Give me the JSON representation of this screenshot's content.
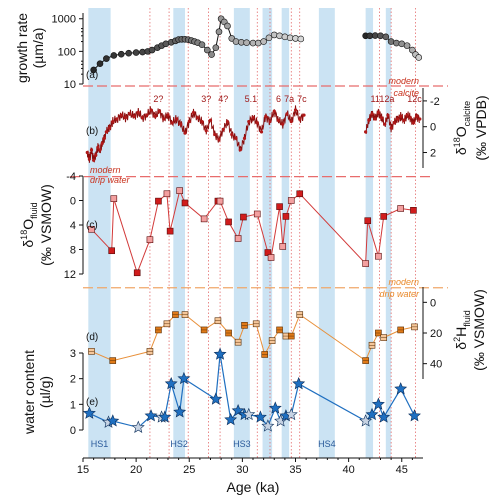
{
  "chart_data": {
    "type": "scatter",
    "xlabel": "Age (ka)",
    "xlim": [
      15,
      47
    ],
    "xticks": [
      15,
      20,
      25,
      30,
      35,
      40,
      45
    ],
    "heinrich_stadials": [
      {
        "label": "HS1",
        "start": 15.5,
        "end": 17.6
      },
      {
        "label": "HS2",
        "start": 23.5,
        "end": 24.6
      },
      {
        "label": "HS3",
        "start": 29.2,
        "end": 30.7
      },
      {
        "label": "HS4",
        "start": 37.2,
        "end": 38.7
      }
    ],
    "extra_bands": [
      {
        "start": 31.9,
        "end": 32.8
      },
      {
        "start": 33.7,
        "end": 34.4
      },
      {
        "start": 41.6,
        "end": 42.3
      },
      {
        "start": 43.5,
        "end": 44.0
      }
    ],
    "interstadial_lines": [
      21.3,
      23.1,
      24.9,
      26.8,
      27.9,
      31.4,
      32.6,
      34.6,
      35.4,
      42.9,
      44.0,
      46.3
    ],
    "interstadial_labels": [
      {
        "label": "2?",
        "x": 22.1
      },
      {
        "label": "3?",
        "x": 26.6
      },
      {
        "label": "4?",
        "x": 28.2
      },
      {
        "label": "5.1",
        "x": 30.8
      },
      {
        "label": "6",
        "x": 33.4
      },
      {
        "label": "7a",
        "x": 34.4
      },
      {
        "label": "7c",
        "x": 35.6
      },
      {
        "label": "11",
        "x": 42.5
      },
      {
        "label": "12a",
        "x": 43.6
      },
      {
        "label": "12c",
        "x": 46.2
      }
    ],
    "panels": {
      "a": {
        "letter": "(a)",
        "ylabel": "growth rate",
        "ylabel_unit": "(µm/a)",
        "scale": "log",
        "ylim": [
          10,
          1500
        ],
        "yticks": [
          10,
          100,
          1000
        ],
        "modern_label": "modern",
        "series": [
          {
            "x": [
              16.0,
              16.6,
              17.2,
              17.9,
              18.6,
              19.3,
              20.0,
              20.6,
              21.1,
              21.5,
              22.0,
              22.4,
              22.8,
              23.3,
              23.7,
              24.0,
              24.3,
              24.6,
              24.9,
              25.2,
              25.5,
              25.8,
              26.2,
              26.7,
              27.1,
              27.5,
              27.8,
              28.0,
              28.3,
              28.6,
              29.0,
              29.4,
              29.9,
              30.4,
              31.0,
              31.5,
              32.0,
              32.5,
              33.0,
              33.5,
              34.0,
              34.5,
              35.0,
              35.5
            ],
            "y": [
              27,
              42,
              60,
              75,
              82,
              88,
              92,
              95,
              100,
              110,
              130,
              150,
              170,
              190,
              210,
              230,
              235,
              235,
              228,
              215,
              200,
              185,
              160,
              110,
              80,
              130,
              400,
              1000,
              800,
              600,
              250,
              200,
              190,
              185,
              180,
              180,
              200,
              260,
              320,
              300,
              280,
              260,
              250,
              240
            ]
          },
          {
            "x": [
              41.6,
              42.0,
              42.5,
              43.0,
              43.5,
              44.0,
              44.5,
              45.0,
              45.5,
              46.0,
              46.3,
              46.6
            ],
            "y": [
              300,
              300,
              305,
              300,
              280,
              200,
              180,
              170,
              150,
              110,
              80,
              65
            ]
          }
        ]
      },
      "b": {
        "letter": "(b)",
        "ylabel": "δ18O calcite",
        "ylabel_unit": "(‰ VPDB)",
        "ylim_top": -3,
        "ylim_bottom": 3.2,
        "yticks": [
          -2,
          0,
          2
        ],
        "modern_label1": "modern",
        "modern_label2": "calcite",
        "modern_value": -3.3,
        "series": [
          {
            "x": [
              15.4,
              15.6,
              15.8,
              16.0,
              16.2,
              16.4,
              16.6,
              16.8,
              17.0,
              17.2,
              17.5,
              17.8,
              18.2,
              18.6,
              19.0,
              19.4,
              19.8,
              20.2,
              20.6,
              21.0,
              21.4,
              21.8,
              22.2,
              22.6,
              23.0,
              23.4,
              23.8,
              24.2,
              24.6,
              25.0,
              25.4,
              25.8,
              26.2,
              26.6,
              27.0,
              27.4,
              27.8,
              28.2,
              28.6,
              29.0,
              29.4,
              29.8,
              30.2,
              30.6,
              31.0,
              31.4,
              31.8,
              32.2,
              32.6,
              33.0,
              33.4,
              33.8,
              34.2,
              34.6,
              35.0,
              35.4,
              35.8
            ],
            "y": [
              2.0,
              2.5,
              1.8,
              2.6,
              2.2,
              1.6,
              1.8,
              1.3,
              0.9,
              0.4,
              0.1,
              -0.4,
              -0.6,
              -0.9,
              -0.7,
              -1.0,
              -0.8,
              -1.1,
              -0.7,
              -0.9,
              -1.3,
              -0.8,
              -1.2,
              -0.6,
              -0.9,
              -0.3,
              -0.6,
              -0.2,
              0.5,
              -0.4,
              -1.1,
              -0.7,
              -0.4,
              0.3,
              -0.5,
              0.6,
              1.0,
              0.2,
              -0.4,
              0.6,
              0.9,
              1.8,
              0.9,
              -0.4,
              -0.7,
              -0.3,
              0.4,
              -0.8,
              -0.4,
              -1.2,
              -0.5,
              -0.2,
              -1.0,
              -0.4,
              -1.3,
              -0.6,
              -0.9
            ]
          },
          {
            "x": [
              41.6,
              41.9,
              42.2,
              42.5,
              42.8,
              43.1,
              43.4,
              43.7,
              44.0,
              44.3,
              44.6,
              44.9,
              45.2,
              45.5,
              45.8,
              46.1,
              46.4,
              46.7
            ],
            "y": [
              0.4,
              -0.5,
              -1.0,
              -0.6,
              -1.1,
              -0.7,
              -0.2,
              -0.9,
              0.1,
              -0.3,
              -0.6,
              -0.8,
              -0.5,
              -0.9,
              -0.7,
              -0.3,
              -0.8,
              -0.6
            ]
          }
        ]
      },
      "c": {
        "letter": "(c)",
        "ylabel": "δ18O fluid",
        "ylabel_unit": "(‰ VSMOW)",
        "ylim_top": -4,
        "ylim_bottom": 12,
        "yticks": [
          -4,
          0,
          4,
          8,
          12
        ],
        "modern_label1": "modern",
        "modern_label2": "drip water",
        "modern_value": -3.9,
        "series": [
          {
            "x": [
              15.8,
              17.7,
              17.9,
              20.1,
              21.3,
              22.1,
              22.9,
              23.2,
              24.1,
              24.6,
              26.4,
              27.7,
              27.9,
              28.7,
              29.6,
              30.1,
              31.4,
              32.4,
              32.7,
              33.5,
              33.8,
              34.1,
              34.6,
              35.4,
              41.6,
              41.8,
              42.8,
              43.3,
              44.9,
              46.1
            ],
            "y": [
              4.7,
              8.2,
              -0.3,
              11.8,
              6.4,
              0.1,
              -1.1,
              5.0,
              -1.6,
              0.4,
              3.0,
              0.1,
              0.1,
              3.5,
              6.2,
              2.7,
              2.2,
              8.5,
              9.3,
              1.0,
              7.5,
              2.6,
              0.0,
              -1.1,
              10.3,
              3.3,
              9.1,
              2.6,
              1.3,
              1.6
            ]
          }
        ]
      },
      "d": {
        "letter": "(d)",
        "ylabel": "δ2H fluid",
        "ylabel_unit": "(‰ VSMOW)",
        "ylim_top": -10,
        "ylim_bottom": 50,
        "yticks": [
          0,
          20,
          40
        ],
        "modern_label1": "modern",
        "modern_label2": "drip water",
        "modern_value": -9.5,
        "series": [
          {
            "x": [
              15.8,
              17.8,
              21.3,
              22.1,
              22.9,
              23.7,
              24.6,
              26.4,
              27.7,
              28.7,
              29.6,
              30.2,
              31.3,
              32.1,
              32.8,
              33.5,
              34.1,
              34.6,
              35.4,
              41.6,
              42.2,
              42.8,
              43.3,
              44.9,
              46.2
            ],
            "y": [
              32,
              38,
              32,
              18,
              14,
              8,
              8,
              18,
              12,
              20,
              26,
              15,
              14,
              34,
              25,
              18,
              22,
              22,
              8,
              38,
              28,
              20,
              23,
              18,
              16
            ]
          }
        ]
      },
      "e": {
        "letter": "(e)",
        "ylabel": "water content",
        "ylabel_unit": "(µl/g)",
        "ylim": [
          0,
          3.4
        ],
        "yticks": [
          0,
          1,
          2,
          3
        ],
        "series": [
          {
            "x": [
              15.6,
              17.4,
              17.8,
              20.2,
              21.4,
              22.4,
              22.7,
              23.3,
              24.1,
              24.5,
              27.5,
              27.9,
              28.9,
              29.6,
              30.2,
              30.6,
              31.7,
              32.4,
              33.1,
              33.6,
              34.1,
              34.6,
              35.3,
              41.6,
              42.2,
              42.8,
              43.3,
              44.9,
              46.2
            ],
            "y": [
              0.65,
              0.3,
              0.35,
              0.1,
              0.55,
              0.5,
              0.5,
              1.8,
              0.7,
              2.0,
              1.2,
              2.95,
              0.4,
              0.75,
              0.6,
              0.6,
              0.5,
              0.15,
              0.85,
              0.35,
              0.55,
              0.6,
              1.8,
              0.35,
              0.6,
              1.0,
              0.5,
              1.6,
              0.55
            ]
          }
        ]
      }
    }
  }
}
